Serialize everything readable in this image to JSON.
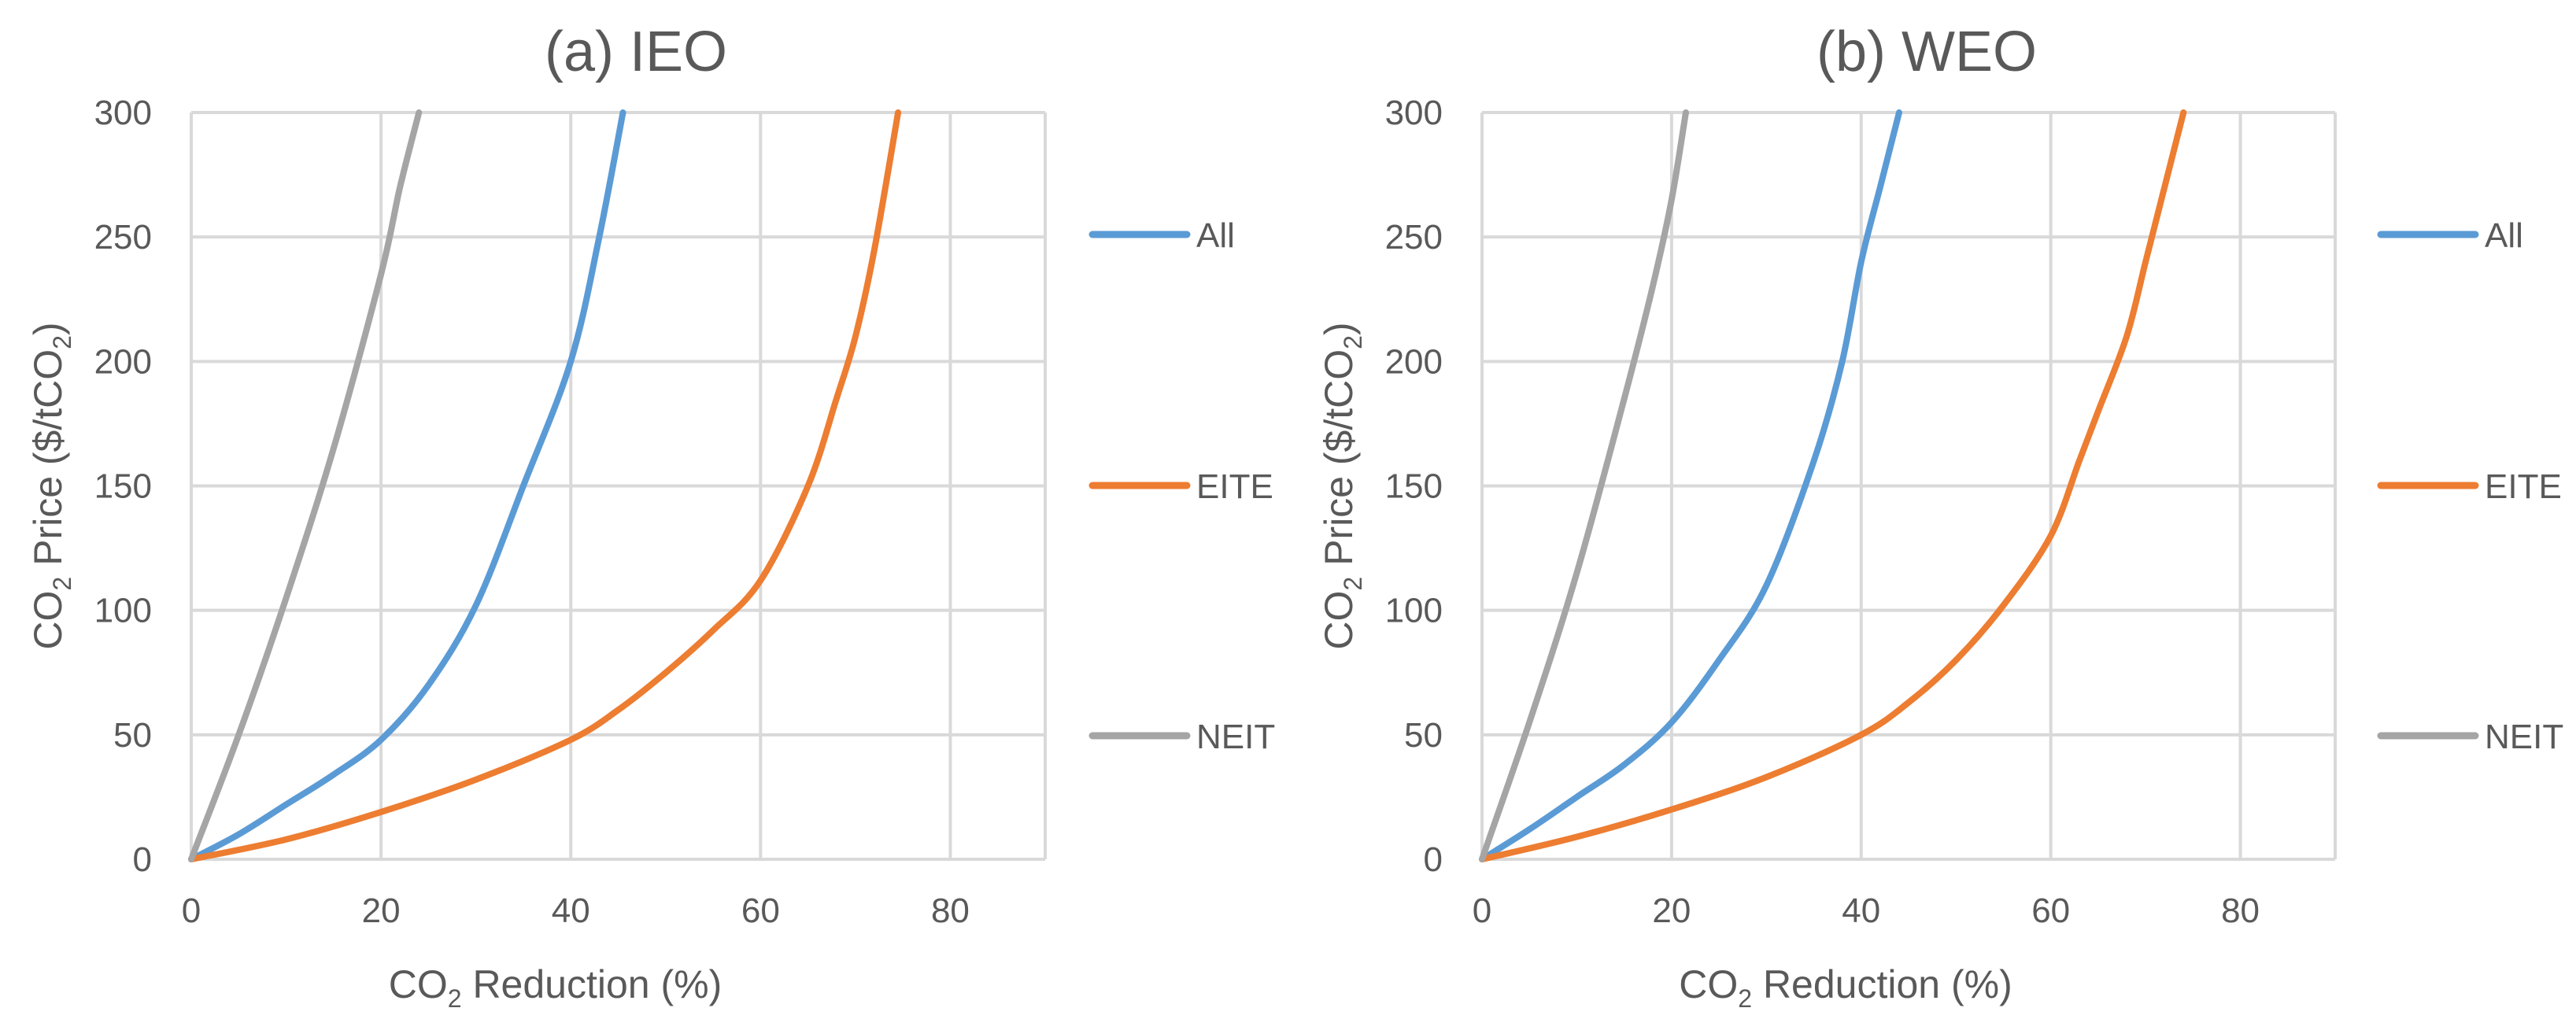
{
  "chart_data": [
    {
      "type": "line",
      "title": "(a) IEO",
      "xlabel": {
        "pre": "CO",
        "sub": "2",
        "post": " Reduction (%)"
      },
      "ylabel": {
        "pre": "CO",
        "sub": "2",
        "mid": " Price ($/tCO",
        "sub2": "2",
        "post": ")"
      },
      "xlim": [
        0,
        90
      ],
      "ylim": [
        0,
        300
      ],
      "xticks": [
        0,
        20,
        40,
        60,
        80
      ],
      "yticks": [
        0,
        50,
        100,
        150,
        200,
        250,
        300
      ],
      "grid": true,
      "legend_position": "right",
      "series": [
        {
          "name": "All",
          "color": "#5b9bd5",
          "x": [
            0,
            5,
            10,
            15,
            20,
            25,
            30,
            35,
            40,
            43,
            45.5
          ],
          "y": [
            0,
            10,
            22,
            34,
            48,
            70,
            102,
            150,
            200,
            250,
            300
          ]
        },
        {
          "name": "EITE",
          "color": "#ed7d31",
          "x": [
            0,
            10,
            20,
            30,
            40,
            45,
            50,
            55,
            60,
            65,
            68,
            70,
            72,
            74.5
          ],
          "y": [
            0,
            8,
            19,
            32,
            48,
            60,
            75,
            92,
            112,
            150,
            185,
            210,
            245,
            300
          ]
        },
        {
          "name": "NEIT",
          "color": "#a5a5a5",
          "x": [
            0,
            5,
            10,
            15,
            20,
            22,
            24
          ],
          "y": [
            0,
            50,
            105,
            165,
            235,
            270,
            300
          ]
        }
      ]
    },
    {
      "type": "line",
      "title": "(b) WEO",
      "xlabel": {
        "pre": "CO",
        "sub": "2",
        "post": " Reduction (%)"
      },
      "ylabel": {
        "pre": "CO",
        "sub": "2",
        "mid": " Price ($/tCO",
        "sub2": "2",
        "post": ")"
      },
      "xlim": [
        0,
        90
      ],
      "ylim": [
        0,
        300
      ],
      "xticks": [
        0,
        20,
        40,
        60,
        80
      ],
      "yticks": [
        0,
        50,
        100,
        150,
        200,
        250,
        300
      ],
      "grid": true,
      "legend_position": "right",
      "series": [
        {
          "name": "All",
          "color": "#5b9bd5",
          "x": [
            0,
            5,
            10,
            15,
            20,
            25,
            30,
            35,
            38,
            40,
            42,
            44
          ],
          "y": [
            0,
            12,
            25,
            38,
            55,
            80,
            110,
            160,
            200,
            240,
            270,
            300
          ]
        },
        {
          "name": "EITE",
          "color": "#ed7d31",
          "x": [
            0,
            10,
            20,
            30,
            40,
            45,
            50,
            55,
            60,
            63,
            65,
            68,
            70,
            72,
            74
          ],
          "y": [
            0,
            9,
            20,
            33,
            50,
            63,
            80,
            102,
            130,
            160,
            180,
            210,
            240,
            270,
            300
          ]
        },
        {
          "name": "NEIT",
          "color": "#a5a5a5",
          "x": [
            0,
            5,
            10,
            15,
            18,
            20,
            21.5
          ],
          "y": [
            0,
            55,
            115,
            185,
            230,
            265,
            300
          ]
        }
      ]
    }
  ]
}
